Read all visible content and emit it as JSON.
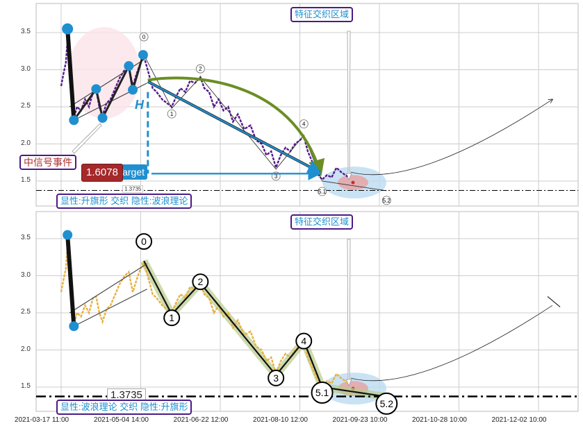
{
  "chart_data": {
    "type": "line",
    "panels": [
      {
        "name": "top",
        "legend_text": "显性:升旗形 交织 隐性:波浪理论",
        "price_color": "#55198c"
      },
      {
        "name": "bottom",
        "legend_text": "显性:波浪理论 交织 隐性:升旗形",
        "price_color": "#e8b040"
      }
    ],
    "x_tick_labels": [
      "2021-03-17 11:00",
      "2021-05-04 14:00",
      "2021-06-22 12:00",
      "2021-08-10 12:00",
      "2021-09-23 10:00",
      "2021-10-28 10:00",
      "2021-12-02 10:00"
    ],
    "y_ticks": [
      "3.5",
      "3.0",
      "2.5",
      "2.0",
      "1.5"
    ],
    "y_tick_values": [
      3.5,
      3.0,
      2.5,
      2.0,
      1.5
    ],
    "ylim": [
      1.2,
      3.9
    ],
    "price": [
      [
        0,
        2.78
      ],
      [
        0.03,
        2.95
      ],
      [
        0.06,
        3.1
      ],
      [
        0.08,
        3.4
      ],
      [
        0.1,
        3.0
      ],
      [
        0.13,
        2.6
      ],
      [
        0.16,
        2.35
      ],
      [
        0.2,
        2.5
      ],
      [
        0.25,
        2.45
      ],
      [
        0.3,
        2.6
      ],
      [
        0.35,
        2.5
      ],
      [
        0.4,
        2.7
      ],
      [
        0.44,
        2.72
      ],
      [
        0.48,
        2.5
      ],
      [
        0.52,
        2.38
      ],
      [
        0.57,
        2.55
      ],
      [
        0.62,
        2.6
      ],
      [
        0.68,
        2.75
      ],
      [
        0.74,
        2.9
      ],
      [
        0.8,
        3.0
      ],
      [
        0.85,
        3.05
      ],
      [
        0.9,
        2.78
      ],
      [
        0.95,
        2.95
      ],
      [
        1.0,
        3.1
      ],
      [
        1.04,
        3.18
      ],
      [
        1.1,
        2.95
      ],
      [
        1.15,
        2.75
      ],
      [
        1.2,
        2.7
      ],
      [
        1.27,
        2.6
      ],
      [
        1.33,
        2.55
      ],
      [
        1.39,
        2.5
      ],
      [
        1.45,
        2.65
      ],
      [
        1.5,
        2.75
      ],
      [
        1.56,
        2.7
      ],
      [
        1.62,
        2.85
      ],
      [
        1.68,
        2.82
      ],
      [
        1.75,
        2.9
      ],
      [
        1.8,
        2.75
      ],
      [
        1.86,
        2.7
      ],
      [
        1.92,
        2.5
      ],
      [
        1.98,
        2.6
      ],
      [
        2.04,
        2.45
      ],
      [
        2.1,
        2.5
      ],
      [
        2.16,
        2.3
      ],
      [
        2.22,
        2.4
      ],
      [
        2.3,
        2.2
      ],
      [
        2.38,
        2.25
      ],
      [
        2.45,
        2.05
      ],
      [
        2.52,
        2.0
      ],
      [
        2.58,
        1.85
      ],
      [
        2.64,
        1.9
      ],
      [
        2.7,
        1.68
      ],
      [
        2.76,
        1.85
      ],
      [
        2.82,
        1.95
      ],
      [
        2.88,
        1.9
      ],
      [
        2.94,
        2.0
      ],
      [
        3.0,
        2.05
      ],
      [
        3.05,
        2.1
      ],
      [
        3.1,
        1.9
      ],
      [
        3.16,
        1.75
      ],
      [
        3.22,
        1.6
      ],
      [
        3.28,
        1.52
      ],
      [
        3.34,
        1.58
      ],
      [
        3.4,
        1.55
      ],
      [
        3.46,
        1.68
      ],
      [
        3.52,
        1.62
      ],
      [
        3.6,
        1.56
      ]
    ],
    "flag_points": [
      [
        0.08,
        3.55
      ],
      [
        0.16,
        2.32
      ],
      [
        0.44,
        2.74
      ],
      [
        0.52,
        2.35
      ],
      [
        0.85,
        3.05
      ],
      [
        0.9,
        2.73
      ],
      [
        1.03,
        3.2
      ]
    ],
    "wave_points": [
      {
        "label": "0",
        "t": 1.04,
        "v": 3.2
      },
      {
        "label": "1",
        "t": 1.39,
        "v": 2.48
      },
      {
        "label": "2",
        "t": 1.75,
        "v": 2.9
      },
      {
        "label": "3",
        "t": 2.7,
        "v": 1.66
      },
      {
        "label": "4",
        "t": 3.05,
        "v": 2.12
      },
      {
        "label": "5.1",
        "t": 3.28,
        "v": 1.5
      },
      {
        "label": "5.2",
        "t": 4.09,
        "v": 1.37
      }
    ],
    "support_level": 1.3735,
    "support_label": "1.3735",
    "target_value_label": "1.6078",
    "target_label": "Target",
    "zone_label": "特征交织区域",
    "signal_label": "中信号事件",
    "height_label": "H"
  }
}
